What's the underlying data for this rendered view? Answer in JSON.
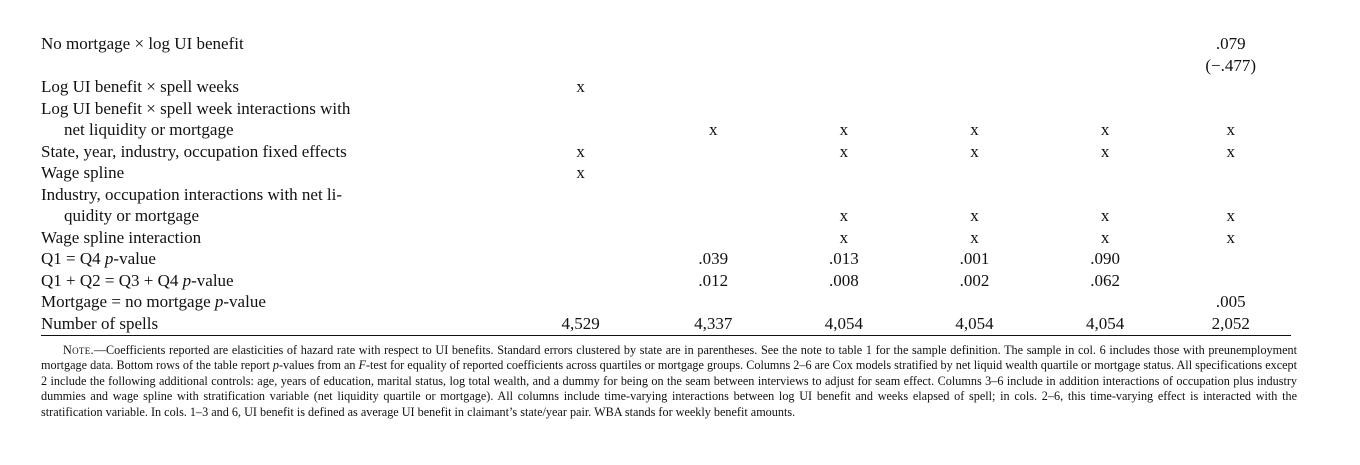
{
  "rows": {
    "r0": {
      "label": "No mortgage × log UI benefit",
      "c6": ".079",
      "c6b": "(−.477)"
    },
    "r1": {
      "label": "Log UI benefit × spell weeks",
      "c1": "x"
    },
    "r2": {
      "label_a": "Log UI benefit × spell week interactions with",
      "label_b": "net liquidity or mortgage",
      "c2": "x",
      "c3": "x",
      "c4": "x",
      "c5": "x",
      "c6": "x"
    },
    "r3": {
      "label": "State, year, industry, occupation fixed effects",
      "c1": "x",
      "c3": "x",
      "c4": "x",
      "c5": "x",
      "c6": "x"
    },
    "r4": {
      "label": "Wage spline",
      "c1": "x"
    },
    "r5": {
      "label_a": "Industry, occupation interactions with net li-",
      "label_b": "quidity or mortgage",
      "c3": "x",
      "c4": "x",
      "c5": "x",
      "c6": "x"
    },
    "r6": {
      "label": "Wage spline interaction",
      "c3": "x",
      "c4": "x",
      "c5": "x",
      "c6": "x"
    },
    "r7": {
      "label_pre": "Q1 = Q4 ",
      "label_p": "p",
      "label_post": "-value",
      "c2": ".039",
      "c3": ".013",
      "c4": ".001",
      "c5": ".090"
    },
    "r8": {
      "label_pre": "Q1 + Q2 = Q3 + Q4 ",
      "label_p": "p",
      "label_post": "-value",
      "c2": ".012",
      "c3": ".008",
      "c4": ".002",
      "c5": ".062"
    },
    "r9": {
      "label_pre": "Mortgage = no mortgage ",
      "label_p": "p",
      "label_post": "-value",
      "c6": ".005"
    },
    "r10": {
      "label": "Number of spells",
      "c1": "4,529",
      "c2": "4,337",
      "c3": "4,054",
      "c4": "4,054",
      "c5": "4,054",
      "c6": "2,052"
    }
  },
  "note": {
    "head": "Note.",
    "dash": "—",
    "t1": "Coefficients reported are elasticities of hazard rate with respect to UI benefits. Standard errors clustered by state are in parentheses. See the note to table 1 for the sample definition. The sample in col. 6 includes those with preunemployment mortgage data. Bottom rows of the table report ",
    "p1": "p",
    "t2": "-values from an ",
    "F": "F",
    "t3": "-test for equality of reported coefficients across quartiles or mortgage groups. Columns 2–6 are Cox models stratified by net liquid wealth quartile or mortgage status. All specifications except 2 include the following additional controls: age, years of education, marital status, log total wealth, and a dummy for being on the seam between interviews to adjust for seam effect. Columns 3–6 include in addition interactions of occupation plus industry dummies and wage spline with stratification variable (net liquidity quartile or mortgage). All columns include time-varying interactions between log UI benefit and weeks elapsed of spell; in cols. 2–6, this time-varying effect is interacted with the stratification variable. In cols. 1–3 and 6, UI benefit is defined as average UI benefit in claimant’s state/year pair. WBA stands for weekly benefit amounts."
  }
}
